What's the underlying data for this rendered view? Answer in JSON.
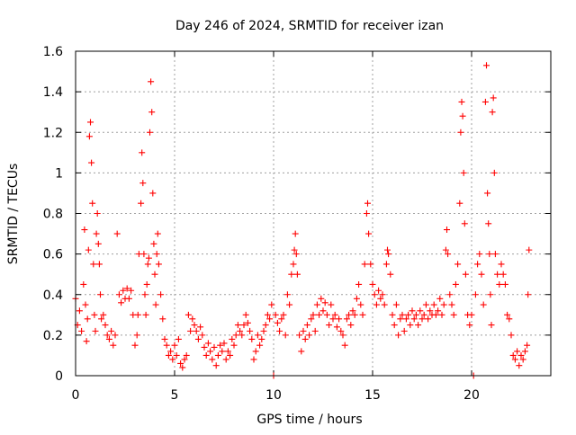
{
  "chart_data": {
    "type": "scatter",
    "title": "Day 246 of 2024, SRMTID for receiver izan",
    "xlabel": "GPS time / hours",
    "ylabel": "SRMTID / TECUs",
    "xlim": [
      0,
      24
    ],
    "ylim": [
      0,
      1.6
    ],
    "xticks": [
      0,
      5,
      10,
      15,
      20
    ],
    "xtick_labels": [
      "0",
      "5",
      "10",
      "15",
      "20"
    ],
    "yticks": [
      0,
      0.2,
      0.4,
      0.6,
      0.8,
      1,
      1.2,
      1.4,
      1.6
    ],
    "ytick_labels": [
      "0",
      "0.2",
      "0.4",
      "0.6",
      "0.8",
      "1",
      "1.2",
      "1.4",
      "1.6"
    ],
    "grid": true,
    "marker": "+",
    "series": [
      {
        "name": "SRMTID",
        "color": "#ff0000",
        "points": [
          [
            0.0,
            0.38
          ],
          [
            0.1,
            0.25
          ],
          [
            0.2,
            0.32
          ],
          [
            0.3,
            0.22
          ],
          [
            0.4,
            0.45
          ],
          [
            0.45,
            0.72
          ],
          [
            0.5,
            0.35
          ],
          [
            0.55,
            0.17
          ],
          [
            0.6,
            0.28
          ],
          [
            0.65,
            0.62
          ],
          [
            0.7,
            1.18
          ],
          [
            0.75,
            1.25
          ],
          [
            0.8,
            1.05
          ],
          [
            0.85,
            0.85
          ],
          [
            0.9,
            0.55
          ],
          [
            0.95,
            0.3
          ],
          [
            1.0,
            0.22
          ],
          [
            1.05,
            0.7
          ],
          [
            1.1,
            0.8
          ],
          [
            1.15,
            0.65
          ],
          [
            1.2,
            0.55
          ],
          [
            1.25,
            0.4
          ],
          [
            1.3,
            0.28
          ],
          [
            1.4,
            0.3
          ],
          [
            1.5,
            0.25
          ],
          [
            1.6,
            0.2
          ],
          [
            1.7,
            0.18
          ],
          [
            1.8,
            0.22
          ],
          [
            1.9,
            0.15
          ],
          [
            2.0,
            0.2
          ],
          [
            2.1,
            0.7
          ],
          [
            2.2,
            0.4
          ],
          [
            2.3,
            0.36
          ],
          [
            2.4,
            0.42
          ],
          [
            2.5,
            0.38
          ],
          [
            2.6,
            0.43
          ],
          [
            2.7,
            0.38
          ],
          [
            2.8,
            0.42
          ],
          [
            2.9,
            0.3
          ],
          [
            3.0,
            0.15
          ],
          [
            3.1,
            0.2
          ],
          [
            3.15,
            0.3
          ],
          [
            3.2,
            0.6
          ],
          [
            3.3,
            0.85
          ],
          [
            3.35,
            1.1
          ],
          [
            3.4,
            0.95
          ],
          [
            3.45,
            0.6
          ],
          [
            3.5,
            0.4
          ],
          [
            3.55,
            0.3
          ],
          [
            3.6,
            0.45
          ],
          [
            3.65,
            0.55
          ],
          [
            3.7,
            0.58
          ],
          [
            3.75,
            1.2
          ],
          [
            3.8,
            1.45
          ],
          [
            3.85,
            1.3
          ],
          [
            3.9,
            0.9
          ],
          [
            3.95,
            0.65
          ],
          [
            4.0,
            0.5
          ],
          [
            4.05,
            0.35
          ],
          [
            4.1,
            0.6
          ],
          [
            4.15,
            0.7
          ],
          [
            4.2,
            0.55
          ],
          [
            4.3,
            0.4
          ],
          [
            4.4,
            0.28
          ],
          [
            4.5,
            0.18
          ],
          [
            4.6,
            0.15
          ],
          [
            4.7,
            0.1
          ],
          [
            4.8,
            0.12
          ],
          [
            4.9,
            0.08
          ],
          [
            5.0,
            0.15
          ],
          [
            5.1,
            0.1
          ],
          [
            5.2,
            0.18
          ],
          [
            5.3,
            0.06
          ],
          [
            5.4,
            0.04
          ],
          [
            5.5,
            0.08
          ],
          [
            5.6,
            0.1
          ],
          [
            5.7,
            0.3
          ],
          [
            5.8,
            0.22
          ],
          [
            5.9,
            0.28
          ],
          [
            6.0,
            0.25
          ],
          [
            6.1,
            0.22
          ],
          [
            6.2,
            0.18
          ],
          [
            6.3,
            0.24
          ],
          [
            6.4,
            0.2
          ],
          [
            6.5,
            0.14
          ],
          [
            6.6,
            0.1
          ],
          [
            6.7,
            0.16
          ],
          [
            6.8,
            0.12
          ],
          [
            6.9,
            0.08
          ],
          [
            7.0,
            0.14
          ],
          [
            7.1,
            0.05
          ],
          [
            7.2,
            0.1
          ],
          [
            7.3,
            0.15
          ],
          [
            7.4,
            0.12
          ],
          [
            7.5,
            0.16
          ],
          [
            7.6,
            0.08
          ],
          [
            7.7,
            0.12
          ],
          [
            7.8,
            0.1
          ],
          [
            7.9,
            0.18
          ],
          [
            8.0,
            0.15
          ],
          [
            8.1,
            0.2
          ],
          [
            8.2,
            0.25
          ],
          [
            8.3,
            0.22
          ],
          [
            8.4,
            0.2
          ],
          [
            8.5,
            0.25
          ],
          [
            8.6,
            0.3
          ],
          [
            8.7,
            0.26
          ],
          [
            8.8,
            0.22
          ],
          [
            8.9,
            0.18
          ],
          [
            9.0,
            0.08
          ],
          [
            9.1,
            0.12
          ],
          [
            9.2,
            0.2
          ],
          [
            9.3,
            0.15
          ],
          [
            9.4,
            0.18
          ],
          [
            9.5,
            0.22
          ],
          [
            9.6,
            0.25
          ],
          [
            9.7,
            0.3
          ],
          [
            9.8,
            0.28
          ],
          [
            9.9,
            0.35
          ],
          [
            10.0,
            0.0
          ],
          [
            10.1,
            0.3
          ],
          [
            10.2,
            0.26
          ],
          [
            10.3,
            0.22
          ],
          [
            10.4,
            0.28
          ],
          [
            10.5,
            0.3
          ],
          [
            10.6,
            0.2
          ],
          [
            10.7,
            0.4
          ],
          [
            10.8,
            0.35
          ],
          [
            10.9,
            0.5
          ],
          [
            11.0,
            0.55
          ],
          [
            11.05,
            0.62
          ],
          [
            11.1,
            0.7
          ],
          [
            11.15,
            0.6
          ],
          [
            11.2,
            0.5
          ],
          [
            11.3,
            0.2
          ],
          [
            11.4,
            0.12
          ],
          [
            11.5,
            0.22
          ],
          [
            11.6,
            0.18
          ],
          [
            11.7,
            0.25
          ],
          [
            11.8,
            0.2
          ],
          [
            11.9,
            0.28
          ],
          [
            12.0,
            0.3
          ],
          [
            12.1,
            0.22
          ],
          [
            12.2,
            0.35
          ],
          [
            12.3,
            0.3
          ],
          [
            12.4,
            0.38
          ],
          [
            12.5,
            0.32
          ],
          [
            12.6,
            0.36
          ],
          [
            12.7,
            0.3
          ],
          [
            12.8,
            0.25
          ],
          [
            12.9,
            0.35
          ],
          [
            13.0,
            0.28
          ],
          [
            13.1,
            0.3
          ],
          [
            13.2,
            0.24
          ],
          [
            13.3,
            0.28
          ],
          [
            13.4,
            0.22
          ],
          [
            13.5,
            0.2
          ],
          [
            13.6,
            0.15
          ],
          [
            13.7,
            0.28
          ],
          [
            13.8,
            0.3
          ],
          [
            13.9,
            0.25
          ],
          [
            14.0,
            0.32
          ],
          [
            14.1,
            0.3
          ],
          [
            14.2,
            0.38
          ],
          [
            14.3,
            0.45
          ],
          [
            14.4,
            0.35
          ],
          [
            14.5,
            0.3
          ],
          [
            14.6,
            0.55
          ],
          [
            14.7,
            0.8
          ],
          [
            14.75,
            0.85
          ],
          [
            14.8,
            0.7
          ],
          [
            14.9,
            0.55
          ],
          [
            15.0,
            0.45
          ],
          [
            15.1,
            0.4
          ],
          [
            15.2,
            0.35
          ],
          [
            15.3,
            0.42
          ],
          [
            15.4,
            0.38
          ],
          [
            15.5,
            0.4
          ],
          [
            15.6,
            0.35
          ],
          [
            15.7,
            0.55
          ],
          [
            15.75,
            0.62
          ],
          [
            15.8,
            0.6
          ],
          [
            15.9,
            0.5
          ],
          [
            16.0,
            0.3
          ],
          [
            16.1,
            0.25
          ],
          [
            16.2,
            0.35
          ],
          [
            16.3,
            0.2
          ],
          [
            16.4,
            0.28
          ],
          [
            16.5,
            0.3
          ],
          [
            16.6,
            0.22
          ],
          [
            16.7,
            0.28
          ],
          [
            16.8,
            0.3
          ],
          [
            16.9,
            0.25
          ],
          [
            17.0,
            0.32
          ],
          [
            17.1,
            0.28
          ],
          [
            17.2,
            0.3
          ],
          [
            17.3,
            0.25
          ],
          [
            17.4,
            0.32
          ],
          [
            17.5,
            0.28
          ],
          [
            17.6,
            0.3
          ],
          [
            17.7,
            0.35
          ],
          [
            17.8,
            0.28
          ],
          [
            17.9,
            0.32
          ],
          [
            18.0,
            0.3
          ],
          [
            18.1,
            0.35
          ],
          [
            18.2,
            0.3
          ],
          [
            18.3,
            0.32
          ],
          [
            18.4,
            0.38
          ],
          [
            18.5,
            0.3
          ],
          [
            18.6,
            0.35
          ],
          [
            18.7,
            0.62
          ],
          [
            18.75,
            0.72
          ],
          [
            18.8,
            0.6
          ],
          [
            18.9,
            0.4
          ],
          [
            19.0,
            0.35
          ],
          [
            19.1,
            0.3
          ],
          [
            19.2,
            0.45
          ],
          [
            19.3,
            0.55
          ],
          [
            19.4,
            0.85
          ],
          [
            19.45,
            1.2
          ],
          [
            19.5,
            1.35
          ],
          [
            19.55,
            1.28
          ],
          [
            19.6,
            1.0
          ],
          [
            19.65,
            0.75
          ],
          [
            19.7,
            0.5
          ],
          [
            19.8,
            0.3
          ],
          [
            19.9,
            0.25
          ],
          [
            20.0,
            0.3
          ],
          [
            20.1,
            0.0
          ],
          [
            20.2,
            0.4
          ],
          [
            20.3,
            0.55
          ],
          [
            20.4,
            0.6
          ],
          [
            20.5,
            0.5
          ],
          [
            20.6,
            0.35
          ],
          [
            20.7,
            1.35
          ],
          [
            20.75,
            1.53
          ],
          [
            20.8,
            0.9
          ],
          [
            20.85,
            0.75
          ],
          [
            20.9,
            0.6
          ],
          [
            20.95,
            0.4
          ],
          [
            21.0,
            0.25
          ],
          [
            21.05,
            1.3
          ],
          [
            21.1,
            1.37
          ],
          [
            21.15,
            1.0
          ],
          [
            21.2,
            0.6
          ],
          [
            21.3,
            0.5
          ],
          [
            21.4,
            0.45
          ],
          [
            21.5,
            0.55
          ],
          [
            21.6,
            0.5
          ],
          [
            21.7,
            0.45
          ],
          [
            21.8,
            0.3
          ],
          [
            21.9,
            0.28
          ],
          [
            22.0,
            0.2
          ],
          [
            22.1,
            0.1
          ],
          [
            22.2,
            0.08
          ],
          [
            22.3,
            0.12
          ],
          [
            22.4,
            0.05
          ],
          [
            22.5,
            0.1
          ],
          [
            22.6,
            0.08
          ],
          [
            22.7,
            0.12
          ],
          [
            22.8,
            0.15
          ],
          [
            22.85,
            0.4
          ],
          [
            22.9,
            0.62
          ]
        ]
      }
    ]
  }
}
